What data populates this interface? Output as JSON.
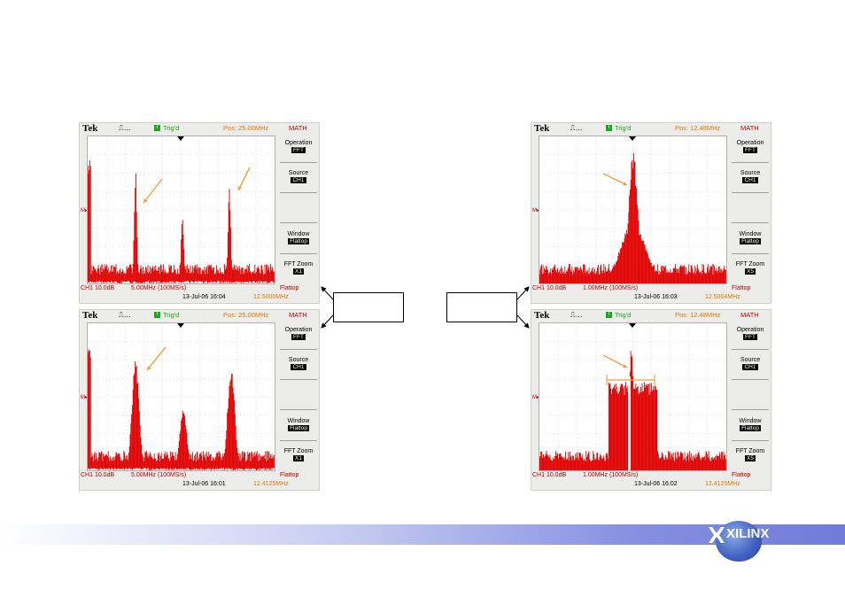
{
  "colors": {
    "trace": "#e00000",
    "accent_orange": "#f0a040",
    "trig_green": "#1ea51e"
  },
  "scopes": [
    {
      "brand": "Tek",
      "trig": "Trig'd",
      "pos": "Pos: 25.00MHz",
      "math": "MATH",
      "m1": "Operation",
      "v1": "FFT",
      "m2": "Source",
      "v2": "CH1",
      "m3": "Window",
      "v3": "Flattop",
      "m4": "FFT Zoom",
      "v4": "X1",
      "ch": "CH1 10.0dB",
      "div": "5.00MHz (100MS/s)",
      "win": "Flattop",
      "date": "13-Jul-06 16:04",
      "freq": "12.5000MHz"
    },
    {
      "brand": "Tek",
      "trig": "Trig'd",
      "pos": "Pos: 12.48MHz",
      "math": "MATH",
      "m1": "Operation",
      "v1": "FFT",
      "m2": "Source",
      "v2": "CH1",
      "m3": "Window",
      "v3": "Flattop",
      "m4": "FFT Zoom",
      "v4": "X5",
      "ch": "CH1 10.0dB",
      "div": "1.00MHz (100MS/s)",
      "win": "Flattop",
      "date": "13-Jul-06 16:03",
      "freq": "12.5004MHz"
    },
    {
      "brand": "Tek",
      "trig": "Trig'd",
      "pos": "Pos: 25.00MHz",
      "math": "MATH",
      "m1": "Operation",
      "v1": "FFT",
      "m2": "Source",
      "v2": "CH1",
      "m3": "Window",
      "v3": "Flattop",
      "m4": "FFT Zoom",
      "v4": "X1",
      "ch": "CH1 10.0dB",
      "div": "5.00MHz (100MS/s)",
      "win": "Flattop",
      "date": "13-Jul-06 16:01",
      "freq": "12.4125MHz"
    },
    {
      "brand": "Tek",
      "trig": "Trig'd",
      "pos": "Pos: 12.48MHz",
      "math": "MATH",
      "m1": "Operation",
      "v1": "FFT",
      "m2": "Source",
      "v2": "CH1",
      "m3": "Window",
      "v3": "Flattop",
      "m4": "FFT Zoom",
      "v4": "X5",
      "ch": "CH1 10.0dB",
      "div": "1.00MHz (100MS/s)",
      "win": "Flattop",
      "date": "13-Jul-06 16:02",
      "freq": "12.4125MHz"
    }
  ],
  "logo": {
    "text": "XILINX"
  }
}
